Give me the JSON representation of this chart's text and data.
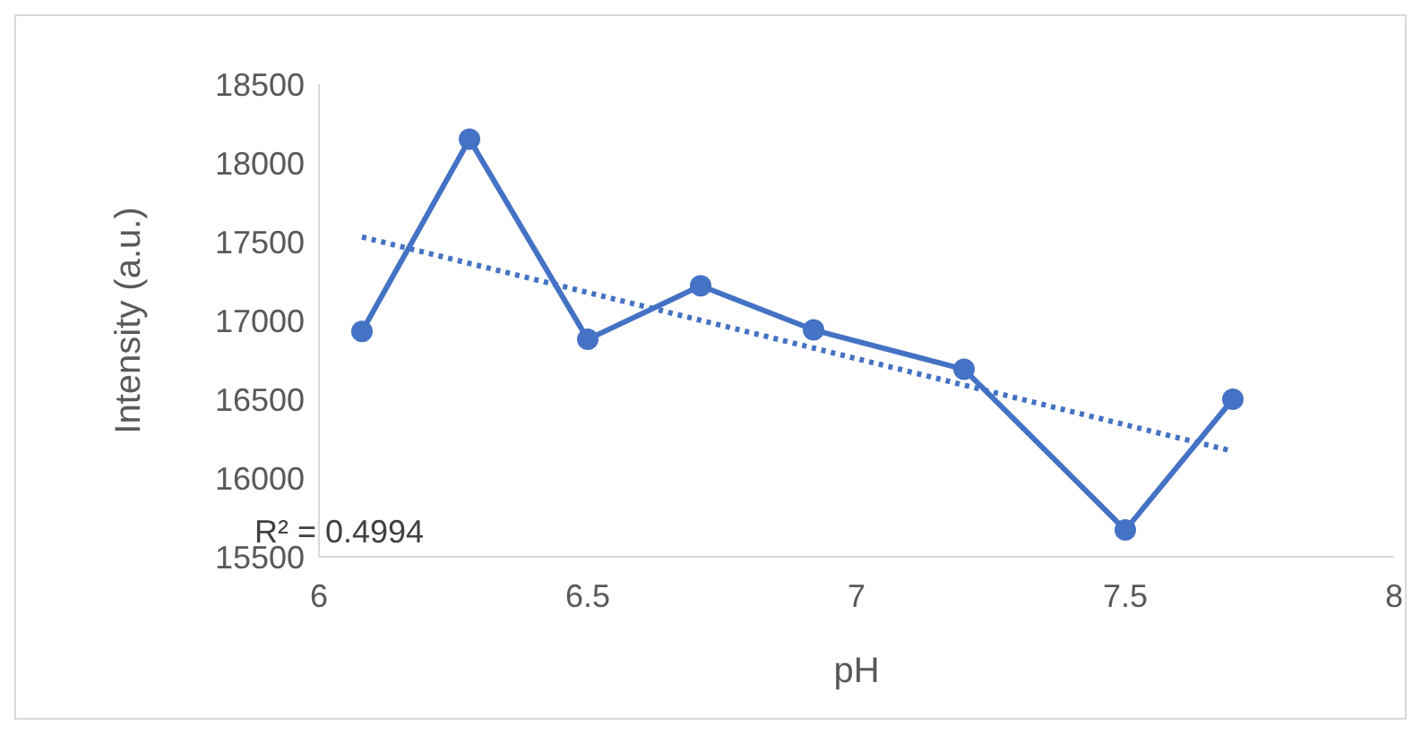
{
  "chart_data": {
    "type": "line",
    "xlabel": "pH",
    "ylabel": "Intensity (a.u.)",
    "xlim": [
      6,
      8
    ],
    "xticks": [
      6,
      6.5,
      7,
      7.5,
      8
    ],
    "ylim": [
      15500,
      18500
    ],
    "yticks": [
      15500,
      16000,
      16500,
      17000,
      17500,
      18000,
      18500
    ],
    "grid": false,
    "marker": "circle",
    "line_style": "solid",
    "annotations": [
      "R² = 0.4994"
    ],
    "series": [
      {
        "color": "#4472c4",
        "x": [
          6.08,
          6.28,
          6.5,
          6.71,
          6.92,
          7.2,
          7.5,
          7.7
        ],
        "values": [
          16930,
          18150,
          16880,
          17220,
          16940,
          16690,
          15670,
          16500
        ]
      },
      {
        "type": "line",
        "color": "#4472c4",
        "line_style": "dotted",
        "marker": "none",
        "x": [
          6.08,
          7.7
        ],
        "values": [
          17530,
          16170
        ]
      }
    ]
  }
}
